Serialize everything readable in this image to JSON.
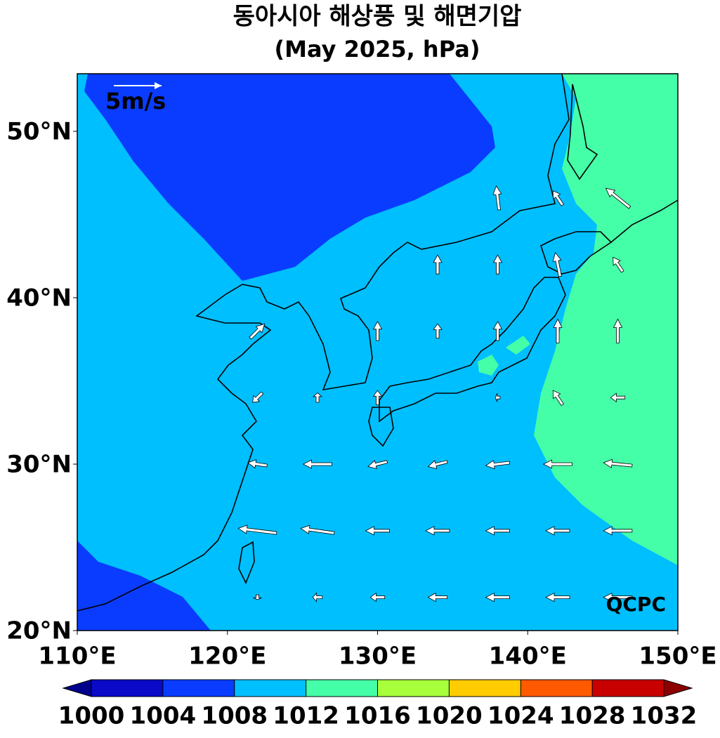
{
  "map": {
    "title": "동아시아 해상풍 및 해면기압",
    "subtitle": "(May 2025, hPa)",
    "lon_range": [
      110,
      150
    ],
    "lat_range": [
      20,
      53.46
    ],
    "lat_ticks": [
      {
        "value": 50,
        "label": "50°N"
      },
      {
        "value": 40,
        "label": "40°N"
      },
      {
        "value": 30,
        "label": "30°N"
      },
      {
        "value": 20,
        "label": "20°N"
      }
    ],
    "lon_ticks": [
      {
        "value": 110,
        "label": "110°E"
      },
      {
        "value": 120,
        "label": "120°E"
      },
      {
        "value": 130,
        "label": "130°E"
      },
      {
        "value": 140,
        "label": "140°E"
      },
      {
        "value": 150,
        "label": "150°E"
      }
    ],
    "reference_vector": {
      "value": 5,
      "label": "5m/s"
    },
    "credit": "QCPC",
    "colorbar": {
      "levels": [
        1000,
        1004,
        1008,
        1012,
        1016,
        1020,
        1024,
        1028,
        1032
      ],
      "colors": [
        "#0a0ac8",
        "#0a3cff",
        "#00bfff",
        "#45ffa8",
        "#a8ff3c",
        "#ffcc00",
        "#ff5a00",
        "#c80000"
      ],
      "under_color": "#00008c",
      "over_color": "#8c0000"
    },
    "wind": {
      "lat": [
        46,
        42,
        38,
        34,
        30,
        26,
        22
      ],
      "lon": [
        122,
        126,
        130,
        134,
        138,
        142,
        146
      ],
      "u": [
        [
          null,
          null,
          null,
          null,
          -0.3,
          -1,
          -2.5
        ],
        [
          null,
          null,
          null,
          0,
          0,
          -0.5,
          -1
        ],
        [
          1.5,
          null,
          0,
          0,
          0,
          0,
          0
        ],
        [
          -1,
          0,
          0,
          null,
          -0.5,
          -1,
          -1.5
        ],
        [
          -2,
          -3,
          -2,
          -2,
          -2.5,
          -3,
          -3
        ],
        [
          -4,
          -3.5,
          -2.5,
          -2.5,
          -2.5,
          -2.5,
          -3
        ],
        [
          0,
          -1,
          -1.5,
          -2,
          -2.5,
          -2.5,
          -3
        ]
      ],
      "v": [
        [
          null,
          null,
          null,
          null,
          2.5,
          1.5,
          2
        ],
        [
          null,
          null,
          null,
          2,
          2,
          2.5,
          1.5
        ],
        [
          1.5,
          null,
          2,
          1.5,
          2,
          2.5,
          2.5
        ],
        [
          -1,
          1,
          1.5,
          null,
          0,
          1.5,
          0
        ],
        [
          0.3,
          0,
          -0.5,
          -0.5,
          -0.3,
          0,
          0.3
        ],
        [
          0.5,
          0.5,
          0,
          0,
          0,
          0,
          0
        ],
        [
          -0.5,
          0,
          0,
          0,
          0,
          0,
          0
        ]
      ]
    }
  }
}
